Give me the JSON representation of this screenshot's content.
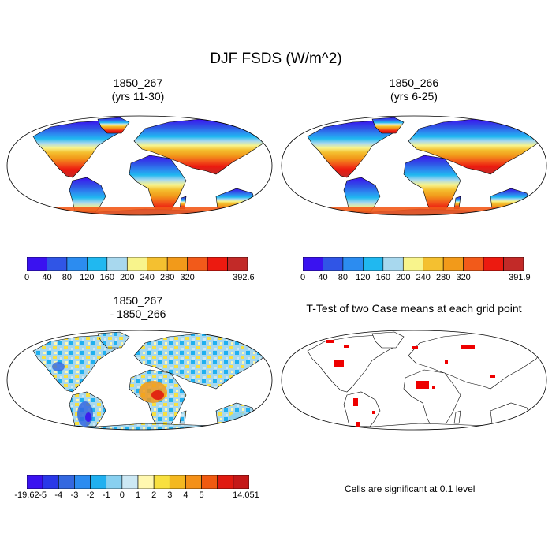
{
  "title": "DJF FSDS (W/m^2)",
  "panels": [
    {
      "title1": "1850_267",
      "title2": "(yrs 11-30)"
    },
    {
      "title1": "1850_266",
      "title2": "(yrs 6-25)"
    },
    {
      "title1": "1850_267",
      "title2": "- 1850_266"
    },
    {
      "title1": "T-Test of two Case means at each grid point"
    }
  ],
  "colorbar_abs1": {
    "colors": [
      "#3a12f0",
      "#3055e6",
      "#2c8cf0",
      "#20b8f0",
      "#a8d8ee",
      "#f8f48c",
      "#f4c030",
      "#f29a1a",
      "#f25a1a",
      "#ec1a10",
      "#c22a28"
    ],
    "labels": [
      "0",
      "40",
      "80",
      "120",
      "160",
      "200",
      "240",
      "280",
      "320",
      "392.6"
    ]
  },
  "colorbar_abs2": {
    "colors": [
      "#3a12f0",
      "#3055e6",
      "#2c8cf0",
      "#20b8f0",
      "#a8d8ee",
      "#f8f48c",
      "#f4c030",
      "#f29a1a",
      "#f25a1a",
      "#ec1a10",
      "#c22a28"
    ],
    "labels": [
      "0",
      "40",
      "80",
      "120",
      "160",
      "200",
      "240",
      "280",
      "320",
      "391.9"
    ]
  },
  "colorbar_diff": {
    "colors": [
      "#3a12f0",
      "#2a38e8",
      "#3468e0",
      "#2c8cf0",
      "#20b0f0",
      "#88d0f0",
      "#cce8f4",
      "#fff8b0",
      "#f8e040",
      "#f4b820",
      "#f49018",
      "#f05a10",
      "#e01a10",
      "#c41818"
    ],
    "labels": [
      "-19.62",
      "-5",
      "-4",
      "-3",
      "-2",
      "-1",
      "0",
      "1",
      "2",
      "3",
      "4",
      "5",
      "14.051"
    ]
  },
  "note": "Cells are significant at 0.1 level"
}
